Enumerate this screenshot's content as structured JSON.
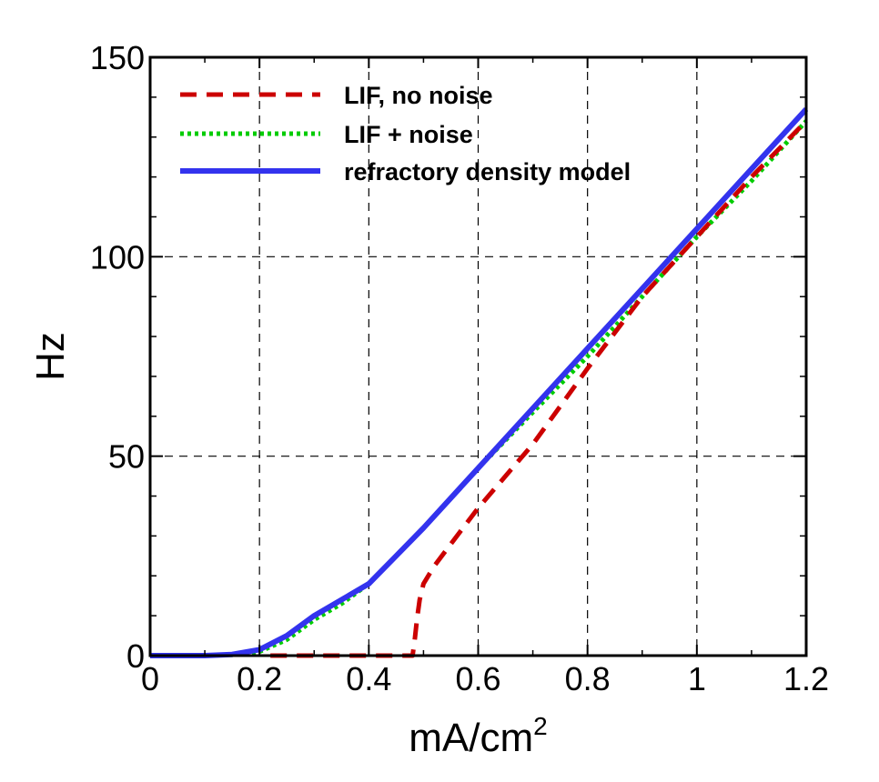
{
  "chart_data": {
    "type": "line",
    "xlabel": "mA/cm",
    "xlabel_superscript": "2",
    "ylabel": "Hz",
    "xlim": [
      0,
      1.2
    ],
    "ylim": [
      0,
      150
    ],
    "x_ticks": [
      "0",
      "0.2",
      "0.4",
      "0.6",
      "0.8",
      "1",
      "1.2"
    ],
    "y_ticks": [
      "0",
      "50",
      "100",
      "150"
    ],
    "grid": true,
    "legend_position": "top-left",
    "series": [
      {
        "name": "LIF, no noise",
        "color": "#cc0000",
        "style": "dashed",
        "points": [
          [
            0.22,
            0
          ],
          [
            0.3,
            0
          ],
          [
            0.4,
            0
          ],
          [
            0.48,
            0
          ],
          [
            0.484,
            4
          ],
          [
            0.488,
            9
          ],
          [
            0.493,
            14
          ],
          [
            0.5,
            18
          ],
          [
            0.52,
            22.5
          ],
          [
            0.55,
            28
          ],
          [
            0.6,
            37
          ],
          [
            0.65,
            45
          ],
          [
            0.7,
            53
          ],
          [
            0.8,
            72
          ],
          [
            0.9,
            90
          ],
          [
            1.0,
            105
          ],
          [
            1.1,
            120
          ],
          [
            1.2,
            134
          ]
        ]
      },
      {
        "name": "LIF + noise",
        "color": "#00cc00",
        "style": "dotted",
        "points": [
          [
            0,
            0
          ],
          [
            0.1,
            0
          ],
          [
            0.15,
            0.2
          ],
          [
            0.2,
            1
          ],
          [
            0.25,
            4
          ],
          [
            0.3,
            9
          ],
          [
            0.35,
            13
          ],
          [
            0.4,
            18
          ],
          [
            0.45,
            25
          ],
          [
            0.5,
            32
          ],
          [
            0.6,
            47
          ],
          [
            0.7,
            61
          ],
          [
            0.8,
            75
          ],
          [
            0.9,
            90
          ],
          [
            1.0,
            105
          ],
          [
            1.1,
            119
          ],
          [
            1.2,
            134
          ]
        ]
      },
      {
        "name": "refractory density model",
        "color": "#3333ee",
        "style": "solid",
        "points": [
          [
            0,
            0
          ],
          [
            0.1,
            0
          ],
          [
            0.15,
            0.3
          ],
          [
            0.2,
            1.5
          ],
          [
            0.25,
            5
          ],
          [
            0.3,
            10
          ],
          [
            0.35,
            14
          ],
          [
            0.4,
            18
          ],
          [
            0.45,
            25
          ],
          [
            0.5,
            32
          ],
          [
            0.6,
            47
          ],
          [
            0.7,
            62
          ],
          [
            0.8,
            77
          ],
          [
            0.9,
            92
          ],
          [
            1.0,
            107
          ],
          [
            1.1,
            122
          ],
          [
            1.2,
            137
          ]
        ]
      }
    ]
  }
}
